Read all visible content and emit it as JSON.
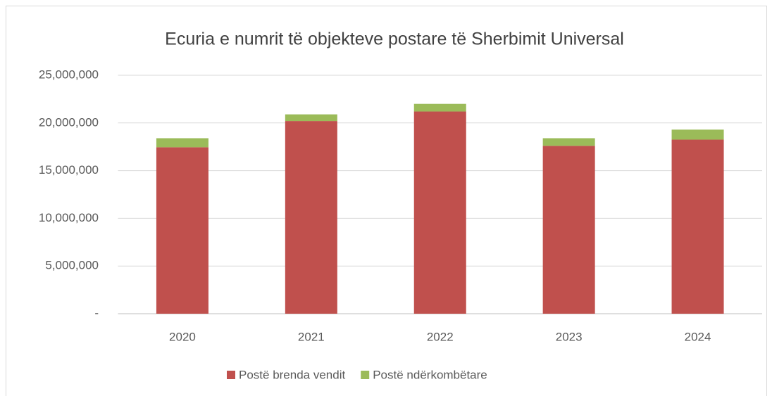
{
  "chart_data": {
    "type": "stacked_bar",
    "title": "Ecuria e numrit të objekteve postare të Sherbimit Universal",
    "categories": [
      "2020",
      "2021",
      "2022",
      "2023",
      "2024"
    ],
    "series": [
      {
        "name": "Postë brenda vendit",
        "color": "#c0504d",
        "values": [
          17450000,
          20200000,
          21200000,
          17600000,
          18250000
        ]
      },
      {
        "name": "Postë ndërkombëtare",
        "color": "#9bbb59",
        "values": [
          950000,
          700000,
          800000,
          800000,
          1050000
        ]
      }
    ],
    "ylim": [
      0,
      25000000
    ],
    "yticks": [
      {
        "value": 0,
        "label": "-"
      },
      {
        "value": 5000000,
        "label": "5,000,000"
      },
      {
        "value": 10000000,
        "label": "10,000,000"
      },
      {
        "value": 15000000,
        "label": "15,000,000"
      },
      {
        "value": 20000000,
        "label": "20,000,000"
      },
      {
        "value": 25000000,
        "label": "25,000,000"
      }
    ],
    "grid": true,
    "legend": "bottom"
  }
}
